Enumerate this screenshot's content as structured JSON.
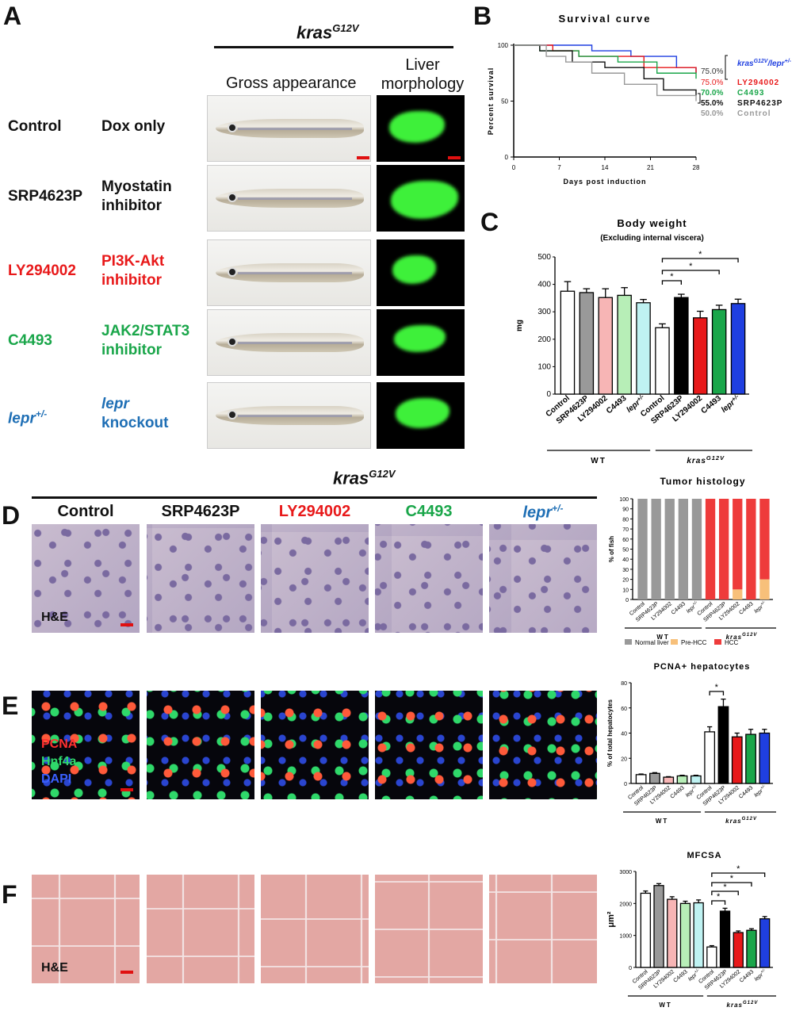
{
  "panels": {
    "A": "A",
    "B": "B",
    "C": "C",
    "D": "D",
    "E": "E",
    "F": "F"
  },
  "genotype": "kras",
  "genotype_sup": "G12V",
  "colA": {
    "gross": "Gross appearance",
    "liver1": "Liver",
    "liver2": "morphology"
  },
  "rows": [
    {
      "name": "Control",
      "treat1": "Dox only",
      "treat2": "",
      "color": "#111111"
    },
    {
      "name": "SRP4623P",
      "treat1": "Myostatin",
      "treat2": "inhibitor",
      "color": "#111111"
    },
    {
      "name": "LY294002",
      "treat1": "PI3K-Akt",
      "treat2": "inhibitor",
      "color": "#e8191a"
    },
    {
      "name": "C4493",
      "treat1": "JAK2/STAT3",
      "treat2": "inhibitor",
      "color": "#1aa64a"
    },
    {
      "name": "lepr",
      "sup": "+/-",
      "treat1": "lepr",
      "treat2": "knockout",
      "color": "#1f6fb5"
    }
  ],
  "micro_cols": [
    {
      "name": "Control",
      "color": "#111111"
    },
    {
      "name": "SRP4623P",
      "color": "#111111"
    },
    {
      "name": "LY294002",
      "color": "#e8191a"
    },
    {
      "name": "C4493",
      "color": "#1aa64a"
    },
    {
      "name": "lepr",
      "sup": "+/-",
      "color": "#1f6fb5"
    }
  ],
  "he_label": "H&E",
  "fluo_labels": {
    "pcna": "PCNA",
    "hnf": "Hnf4a",
    "dapi": "DAPI"
  },
  "colors": {
    "control": "#ffffff",
    "srp": "#000000",
    "ly": "#e8191a",
    "c4493": "#1aa64a",
    "lepr": "#1f3fe0",
    "wt_srp": "#999999",
    "wt_ly": "#f7b5b5",
    "wt_c": "#b7eeb7",
    "wt_lepr": "#bff2f2",
    "normal": "#999999",
    "prehcc": "#f7c07a",
    "hcc": "#ee3b3b"
  },
  "chart_data": [
    {
      "type": "line",
      "title": "Survival curve",
      "xlabel": "Days post induction",
      "ylabel": "Percent survival",
      "xticks": [
        "0",
        "7",
        "14",
        "21",
        "28"
      ],
      "yticks": [
        "0",
        "50",
        "100"
      ],
      "xlim": [
        0,
        28
      ],
      "ylim": [
        0,
        100
      ],
      "series": [
        {
          "name": "kras/lepr",
          "final": "75.0%",
          "color": "#1f3fe0",
          "x": [
            0,
            5,
            12,
            18,
            25,
            28
          ],
          "y": [
            100,
            100,
            95,
            90,
            80,
            75
          ]
        },
        {
          "name": "LY294002",
          "final": "75.0%",
          "color": "#e8191a",
          "x": [
            0,
            6,
            10,
            20,
            28
          ],
          "y": [
            100,
            95,
            90,
            80,
            75
          ]
        },
        {
          "name": "C4493",
          "final": "70.0%",
          "color": "#1aa64a",
          "x": [
            0,
            4,
            10,
            16,
            22,
            28
          ],
          "y": [
            100,
            95,
            90,
            85,
            75,
            70
          ]
        },
        {
          "name": "SRP4623P",
          "final": "55.0%",
          "color": "#111111",
          "x": [
            0,
            4,
            9,
            14,
            20,
            23,
            28
          ],
          "y": [
            100,
            95,
            85,
            80,
            70,
            60,
            55
          ]
        },
        {
          "name": "Control",
          "final": "50.0%",
          "color": "#999999",
          "x": [
            0,
            5,
            8,
            12,
            17,
            22,
            28
          ],
          "y": [
            100,
            90,
            85,
            75,
            65,
            55,
            50
          ]
        }
      ],
      "legend": [
        "kras G12V/lepr +/-",
        "LY294002",
        "C4493",
        "SRP4623P",
        "Control"
      ],
      "legend_values": [
        "75.0%",
        "75.0%",
        "70.0%",
        "55.0%",
        "50.0%"
      ],
      "legend_sup": [
        "G12V",
        "+/-"
      ]
    },
    {
      "type": "bar",
      "title": "Body weight",
      "subtitle": "(Excluding internal viscera)",
      "ylabel": "mg",
      "ylim": [
        0,
        500
      ],
      "yticks": [
        "0",
        "100",
        "200",
        "300",
        "400",
        "500"
      ],
      "categories": [
        "Control",
        "SRP4623P",
        "LY294002",
        "C4493",
        "lepr +/-",
        "Control",
        "SRP4623P",
        "LY294002",
        "C4493",
        "lepr +/-"
      ],
      "values": [
        375,
        370,
        352,
        360,
        333,
        242,
        352,
        278,
        308,
        330
      ],
      "errors": [
        35,
        14,
        32,
        28,
        12,
        14,
        12,
        24,
        16,
        16
      ],
      "groups": [
        "WT",
        "kras G12V"
      ],
      "sig": [
        "*",
        "*",
        "*"
      ]
    },
    {
      "type": "bar",
      "title": "Tumor histology",
      "ylabel": "% of fish",
      "ylim": [
        0,
        100
      ],
      "yticks": [
        "0",
        "10",
        "20",
        "30",
        "40",
        "50",
        "60",
        "70",
        "80",
        "90",
        "100"
      ],
      "categories": [
        "Control",
        "SRP4623P",
        "LY294002",
        "C4493",
        "lepr+/-",
        "Control",
        "SRP4623P",
        "LY294002",
        "C4493",
        "lepr+/-"
      ],
      "series": [
        {
          "name": "Normal liver",
          "values": [
            100,
            100,
            100,
            100,
            100,
            0,
            0,
            0,
            0,
            0
          ]
        },
        {
          "name": "Pre-HCC",
          "values": [
            0,
            0,
            0,
            0,
            0,
            0,
            0,
            10,
            0,
            20
          ]
        },
        {
          "name": "HCC",
          "values": [
            0,
            0,
            0,
            0,
            0,
            100,
            100,
            90,
            100,
            80
          ]
        }
      ],
      "groups": [
        "WT",
        "kras G12V"
      ]
    },
    {
      "type": "bar",
      "title": "PCNA+ hepatocytes",
      "ylabel": "% of total hepatocytes",
      "ylim": [
        0,
        80
      ],
      "yticks": [
        "0",
        "20",
        "40",
        "60",
        "80"
      ],
      "categories": [
        "Control",
        "SRP4623P",
        "LY294002",
        "C4493",
        "lepr+/-",
        "Control",
        "SRP4623P",
        "LY294002",
        "C4493",
        "lepr+/-"
      ],
      "values": [
        7,
        8,
        5,
        6,
        6,
        41,
        61,
        37,
        39,
        40
      ],
      "errors": [
        0.5,
        0.6,
        0.4,
        0.5,
        0.5,
        4,
        6,
        3,
        4,
        3
      ],
      "groups": [
        "WT",
        "kras G12V"
      ],
      "sig": [
        "*"
      ]
    },
    {
      "type": "bar",
      "title": "MFCSA",
      "ylabel": "μm²",
      "ylim": [
        0,
        3000
      ],
      "yticks": [
        "0",
        "1000",
        "2000",
        "3000"
      ],
      "categories": [
        "Control",
        "SRP4623P",
        "LY294002",
        "C4493",
        "lepr+/-",
        "Control",
        "SRP4623P",
        "LY294002",
        "C4493",
        "lepr+/-"
      ],
      "values": [
        2320,
        2560,
        2130,
        2000,
        2020,
        640,
        1760,
        1090,
        1160,
        1520
      ],
      "errors": [
        70,
        60,
        80,
        70,
        90,
        40,
        90,
        50,
        50,
        70
      ],
      "groups": [
        "WT",
        "kras G12V"
      ],
      "sig": [
        "*",
        "*",
        "*",
        "*"
      ]
    }
  ]
}
